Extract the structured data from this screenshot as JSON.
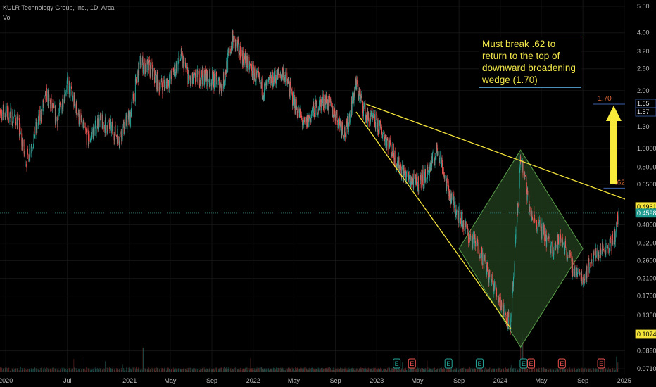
{
  "header": {
    "symbol_line": "KULR Technology Group, Inc., 1D, Arca",
    "vol_label": "Vol"
  },
  "annotation": {
    "text": "Must break .62 to return to the top of downward broadening wedge (1.70)",
    "level_170_label": "1.70",
    "level_62_label": ".62"
  },
  "colors": {
    "up": "#26a69a",
    "down": "#ef5350",
    "wedge_line": "#f5e43a",
    "diamond_stroke": "#5a9e4a",
    "diamond_fill": "#1e3a1c",
    "level_line": "#3b5fa8",
    "price_line": "#2a6e68"
  },
  "chart_data": {
    "type": "candlestick",
    "y_scale": "log",
    "ylim": [
      0.071,
      5.5
    ],
    "y_ticks": [
      "5.50",
      "4.00",
      "3.20",
      "2.60",
      "2.00",
      "1.30",
      "1.0000",
      "0.8000",
      "0.6500",
      "0.4000",
      "0.3200",
      "0.2600",
      "0.2100",
      "0.1700",
      "0.1350",
      "0.0880",
      "0.0710"
    ],
    "y_tick_values": [
      5.5,
      4.0,
      3.2,
      2.6,
      2.0,
      1.3,
      1.0,
      0.8,
      0.65,
      0.4,
      0.32,
      0.26,
      0.21,
      0.17,
      0.135,
      0.088,
      0.071
    ],
    "price_labels": [
      {
        "text": "1.65",
        "value": 1.65
      },
      {
        "text": "1.57",
        "value": 1.57
      },
      {
        "text": "0.4961",
        "value": 0.4961
      },
      {
        "text": "0.4598",
        "value": 0.4598
      },
      {
        "text": "0.1074",
        "value": 0.1074
      }
    ],
    "x_ticks": [
      "2020",
      "Jul",
      "2021",
      "May",
      "Sep",
      "2022",
      "May",
      "Sep",
      "2023",
      "May",
      "Sep",
      "2024",
      "May",
      "Sep",
      "2025"
    ],
    "x_tick_dates": [
      "2020-01",
      "2020-07",
      "2021-01",
      "2021-05",
      "2021-09",
      "2022-01",
      "2022-05",
      "2022-09",
      "2023-01",
      "2023-05",
      "2023-09",
      "2024-01",
      "2024-05",
      "2024-09",
      "2025-01"
    ],
    "price_path": [
      {
        "date": "2019-12",
        "close": 1.6
      },
      {
        "date": "2020-02",
        "close": 1.45
      },
      {
        "date": "2020-03",
        "close": 0.85
      },
      {
        "date": "2020-05",
        "close": 1.9
      },
      {
        "date": "2020-06",
        "close": 1.4
      },
      {
        "date": "2020-07",
        "close": 2.2
      },
      {
        "date": "2020-08",
        "close": 1.5
      },
      {
        "date": "2020-09",
        "close": 1.1
      },
      {
        "date": "2020-10",
        "close": 1.4
      },
      {
        "date": "2020-11",
        "close": 1.3
      },
      {
        "date": "2020-12",
        "close": 1.15
      },
      {
        "date": "2021-01",
        "close": 1.45
      },
      {
        "date": "2021-02",
        "close": 2.8
      },
      {
        "date": "2021-03",
        "close": 2.6
      },
      {
        "date": "2021-04",
        "close": 2.1
      },
      {
        "date": "2021-05",
        "close": 2.3
      },
      {
        "date": "2021-06",
        "close": 3.0
      },
      {
        "date": "2021-07",
        "close": 2.2
      },
      {
        "date": "2021-08",
        "close": 2.4
      },
      {
        "date": "2021-09",
        "close": 2.3
      },
      {
        "date": "2021-10",
        "close": 2.1
      },
      {
        "date": "2021-11",
        "close": 3.7
      },
      {
        "date": "2021-12",
        "close": 3.0
      },
      {
        "date": "2022-01",
        "close": 2.5
      },
      {
        "date": "2022-02",
        "close": 2.0
      },
      {
        "date": "2022-03",
        "close": 2.3
      },
      {
        "date": "2022-04",
        "close": 2.5
      },
      {
        "date": "2022-05",
        "close": 1.75
      },
      {
        "date": "2022-06",
        "close": 1.3
      },
      {
        "date": "2022-07",
        "close": 1.6
      },
      {
        "date": "2022-08",
        "close": 1.8
      },
      {
        "date": "2022-09",
        "close": 1.5
      },
      {
        "date": "2022-10",
        "close": 1.2
      },
      {
        "date": "2022-11",
        "close": 2.15
      },
      {
        "date": "2022-12",
        "close": 1.45
      },
      {
        "date": "2023-01",
        "close": 1.35
      },
      {
        "date": "2023-02",
        "close": 1.1
      },
      {
        "date": "2023-03",
        "close": 0.85
      },
      {
        "date": "2023-04",
        "close": 0.7
      },
      {
        "date": "2023-05",
        "close": 0.65
      },
      {
        "date": "2023-06",
        "close": 0.75
      },
      {
        "date": "2023-07",
        "close": 1.0
      },
      {
        "date": "2023-08",
        "close": 0.6
      },
      {
        "date": "2023-09",
        "close": 0.45
      },
      {
        "date": "2023-10",
        "close": 0.35
      },
      {
        "date": "2023-11",
        "close": 0.3
      },
      {
        "date": "2023-12",
        "close": 0.21
      },
      {
        "date": "2024-01",
        "close": 0.16
      },
      {
        "date": "2024-02",
        "close": 0.12
      },
      {
        "date": "2024-03",
        "close": 0.9
      },
      {
        "date": "2024-04",
        "close": 0.45
      },
      {
        "date": "2024-05",
        "close": 0.38
      },
      {
        "date": "2024-06",
        "close": 0.3
      },
      {
        "date": "2024-07",
        "close": 0.34
      },
      {
        "date": "2024-08",
        "close": 0.24
      },
      {
        "date": "2024-09",
        "close": 0.21
      },
      {
        "date": "2024-10",
        "close": 0.27
      },
      {
        "date": "2024-11",
        "close": 0.3
      },
      {
        "date": "2024-12",
        "close": 0.33
      },
      {
        "date": "2024-12-16",
        "close": 0.46
      }
    ],
    "wedge_upper_line": {
      "from": {
        "date": "2022-12",
        "value": 1.7
      },
      "to": {
        "date": "2025-03",
        "value": 0.5
      }
    },
    "wedge_lower_line": {
      "from": {
        "date": "2022-11",
        "value": 1.55
      },
      "to": {
        "date": "2024-02",
        "value": 0.115
      }
    },
    "diamond": [
      {
        "date": "2023-09",
        "value": 0.3
      },
      {
        "date": "2024-03",
        "value": 0.98
      },
      {
        "date": "2024-09",
        "value": 0.3
      },
      {
        "date": "2024-03",
        "value": 0.092
      }
    ],
    "levels": [
      {
        "label": "1.70",
        "value": 1.7,
        "from": "2024-10",
        "to": "2025-01"
      },
      {
        "label": ".62",
        "value": 0.62,
        "from": "2024-11",
        "to": "2025-01"
      }
    ],
    "target_arrow": {
      "date": "2024-12-01",
      "from_value": 0.62,
      "to_value": 1.7
    },
    "current_price": 0.4598,
    "earnings_markers": [
      {
        "date": "2023-03",
        "label": "E",
        "kind": "up"
      },
      {
        "date": "2023-04-15",
        "label": "E",
        "kind": "down"
      },
      {
        "date": "2023-08",
        "label": "E",
        "kind": "up"
      },
      {
        "date": "2023-11",
        "label": "E",
        "kind": "up"
      },
      {
        "date": "2024-03-10",
        "label": "E",
        "kind": "up"
      },
      {
        "date": "2024-04-01",
        "label": "E",
        "kind": "down"
      },
      {
        "date": "2024-07",
        "label": "E",
        "kind": "down"
      },
      {
        "date": "2024-10-25",
        "label": "E",
        "kind": "down"
      }
    ]
  }
}
